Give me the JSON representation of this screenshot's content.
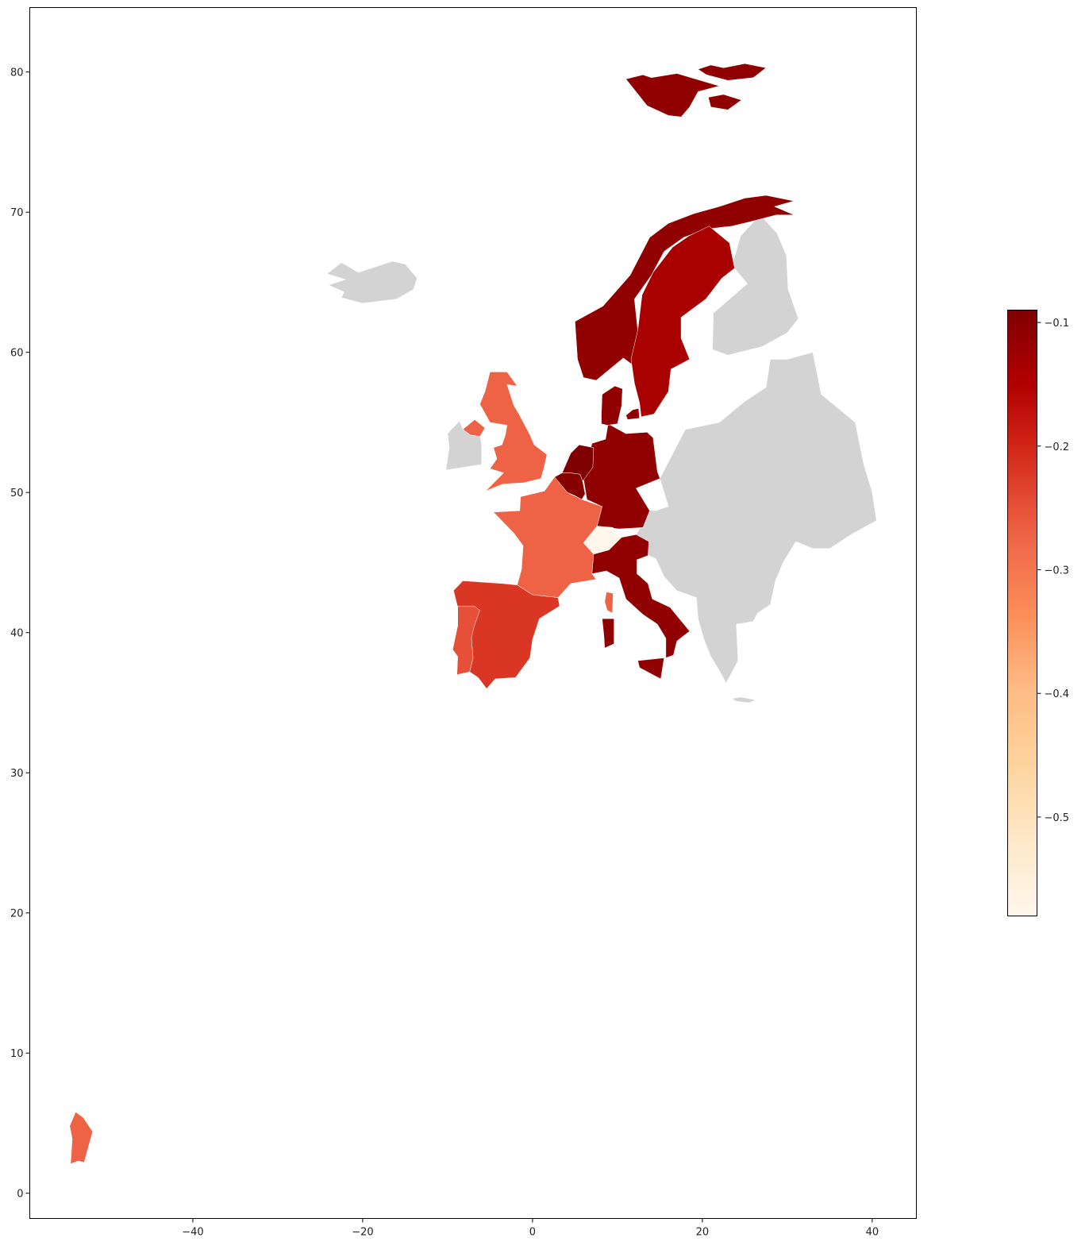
{
  "chart_data": {
    "type": "choropleth",
    "title": "",
    "xlabel": "",
    "ylabel": "",
    "xlim": [
      -59.2,
      45.2
    ],
    "ylim": [
      -1.8,
      84.6
    ],
    "xticks": [
      -40,
      -20,
      0,
      20,
      40
    ],
    "yticks": [
      0,
      10,
      20,
      30,
      40,
      50,
      60,
      70,
      80
    ],
    "grid": false,
    "colormap": "OrRd",
    "colorbar": {
      "min": -0.58,
      "max": -0.09,
      "ticks": [
        -0.5,
        -0.4,
        -0.3,
        -0.2,
        -0.1
      ],
      "placement": "right"
    },
    "missing_color": "#d3d3d3",
    "regions": [
      {
        "name": "Norway",
        "value": -0.11
      },
      {
        "name": "Svalbard",
        "value": -0.11
      },
      {
        "name": "Sweden",
        "value": -0.14
      },
      {
        "name": "Denmark",
        "value": -0.11
      },
      {
        "name": "Germany",
        "value": -0.11
      },
      {
        "name": "Netherlands",
        "value": -0.09
      },
      {
        "name": "Belgium",
        "value": -0.1
      },
      {
        "name": "United Kingdom",
        "value": -0.27
      },
      {
        "name": "France",
        "value": -0.27
      },
      {
        "name": "French Guiana",
        "value": -0.27
      },
      {
        "name": "Spain",
        "value": -0.22
      },
      {
        "name": "Portugal",
        "value": -0.25
      },
      {
        "name": "Italy",
        "value": -0.11
      },
      {
        "name": "Switzerland",
        "value": -0.58
      },
      {
        "name": "Ireland",
        "value": null
      },
      {
        "name": "Iceland",
        "value": null
      },
      {
        "name": "Finland",
        "value": null
      },
      {
        "name": "Eastern Europe",
        "value": null
      },
      {
        "name": "Crete",
        "value": null
      }
    ]
  }
}
